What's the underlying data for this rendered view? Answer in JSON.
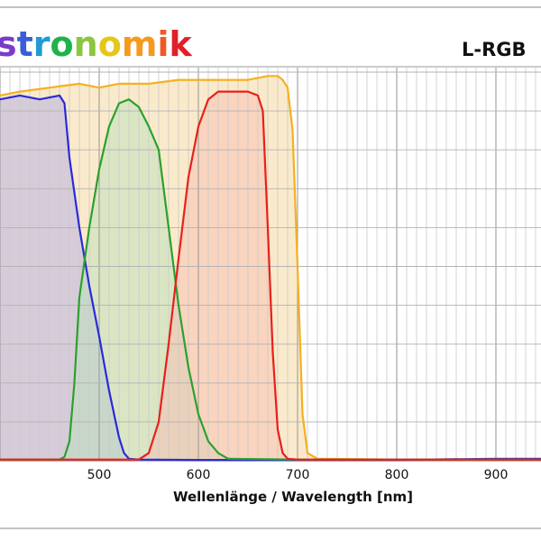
{
  "brand": {
    "text": "stronomik",
    "letter_colors": [
      "#7a3cc8",
      "#3a5ed8",
      "#1f9ad6",
      "#1fb24a",
      "#8cc63f",
      "#e6c619",
      "#f59a1c",
      "#ef5a24",
      "#e0202a"
    ]
  },
  "filter_name": "L-RGB",
  "chart_data": {
    "type": "line",
    "xlabel": "Wellenlänge / Wavelength [nm]",
    "xlim": [
      355,
      1010
    ],
    "ylim": [
      0,
      100
    ],
    "x_ticks": [
      500,
      600,
      700,
      800,
      900
    ],
    "grid": true,
    "series": [
      {
        "color": "#f5b021",
        "fill": "#f5d9a0",
        "x": [
          355,
          370,
          380,
          400,
          420,
          450,
          480,
          500,
          520,
          550,
          580,
          600,
          620,
          650,
          670,
          680,
          685,
          690,
          695,
          700,
          705,
          710,
          720,
          800,
          900,
          1000
        ],
        "y": [
          93,
          94,
          94,
          94,
          95,
          96,
          97,
          96,
          97,
          97,
          98,
          98,
          98,
          98,
          99,
          99,
          98,
          96,
          85,
          50,
          12,
          2,
          0.5,
          0.3,
          0.3,
          0.3
        ]
      },
      {
        "color": "#2a2ad8",
        "fill": "#b8b3e6",
        "x": [
          355,
          370,
          375,
          380,
          390,
          400,
          420,
          440,
          460,
          465,
          470,
          480,
          490,
          500,
          510,
          520,
          525,
          530,
          540,
          600,
          700,
          800,
          900,
          1000
        ],
        "y": [
          93,
          92,
          89,
          92,
          93,
          93,
          94,
          93,
          94,
          92,
          78,
          60,
          45,
          32,
          18,
          6,
          2,
          0.5,
          0.3,
          0.2,
          0.2,
          0.2,
          0.5,
          0.5
        ]
      },
      {
        "color": "#2ca02c",
        "fill": "#bfe0bf",
        "x": [
          355,
          460,
          465,
          470,
          475,
          480,
          490,
          500,
          510,
          520,
          530,
          540,
          550,
          560,
          570,
          580,
          590,
          600,
          610,
          620,
          630,
          700,
          800,
          900,
          1000
        ],
        "y": [
          0.3,
          0.3,
          1,
          5,
          20,
          42,
          60,
          75,
          86,
          92,
          93,
          91,
          86,
          80,
          60,
          40,
          24,
          12,
          5,
          2,
          0.5,
          0.3,
          0.3,
          0.3,
          0.3
        ]
      },
      {
        "color": "#e8201a",
        "fill": "#f7c1b5",
        "x": [
          355,
          540,
          550,
          560,
          570,
          580,
          590,
          600,
          610,
          620,
          630,
          640,
          650,
          660,
          665,
          670,
          675,
          680,
          685,
          690,
          700,
          800,
          900,
          1000
        ],
        "y": [
          0.3,
          0.3,
          2,
          10,
          30,
          52,
          73,
          86,
          93,
          95,
          95,
          95,
          95,
          94,
          90,
          60,
          28,
          8,
          2,
          0.5,
          0.3,
          0.3,
          0.3,
          0.3
        ]
      }
    ]
  }
}
